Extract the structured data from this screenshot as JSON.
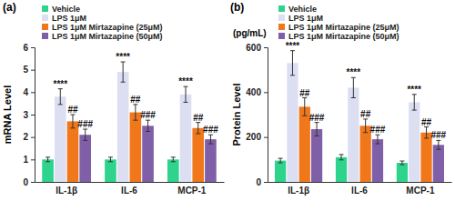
{
  "chart_data": [
    {
      "type": "bar",
      "title": "(a)",
      "y_label": "mRNA Level",
      "categories": [
        "IL-1β",
        "IL-6",
        "MCP-1"
      ],
      "ylim": [
        0,
        6
      ],
      "yticks": [
        0,
        1,
        2,
        3,
        4,
        5,
        6
      ],
      "legend": "top-left",
      "series": [
        {
          "name": "Vehicle",
          "color": "#2ed38c",
          "values": [
            1.0,
            1.0,
            1.0
          ],
          "errors": [
            0.1,
            0.1,
            0.1
          ]
        },
        {
          "name": "LPS 1μM",
          "color": "#dcdff2",
          "values": [
            3.8,
            4.9,
            3.9
          ],
          "errors": [
            0.35,
            0.45,
            0.35
          ],
          "annotations": [
            "****",
            "****",
            "****"
          ]
        },
        {
          "name": "LPS 1μM Mirtazapine (25μM)",
          "color": "#f0771a",
          "values": [
            2.7,
            3.1,
            2.4
          ],
          "errors": [
            0.3,
            0.35,
            0.25
          ],
          "annotations": [
            "##",
            "##",
            "##"
          ]
        },
        {
          "name": "LPS 1μM Mirtazapine (50μM)",
          "color": "#7f5fa8",
          "values": [
            2.1,
            2.5,
            1.9
          ],
          "errors": [
            0.25,
            0.25,
            0.2
          ],
          "annotations": [
            "###",
            "###",
            "###"
          ]
        }
      ]
    },
    {
      "type": "bar",
      "title": "(b)",
      "subtitle": "(pg/mL)",
      "y_label": "Protein Level",
      "categories": [
        "IL-1β",
        "IL-6",
        "MCP-1"
      ],
      "ylim": [
        0,
        600
      ],
      "yticks": [
        0,
        200,
        400,
        600
      ],
      "legend": "top-left",
      "series": [
        {
          "name": "Vehicle",
          "color": "#2ed38c",
          "values": [
            95,
            110,
            85
          ],
          "errors": [
            10,
            12,
            8
          ]
        },
        {
          "name": "LPS 1μM",
          "color": "#dcdff2",
          "values": [
            530,
            420,
            355
          ],
          "errors": [
            55,
            45,
            35
          ],
          "annotations": [
            "****",
            "****",
            "****"
          ]
        },
        {
          "name": "LPS 1μM Mirtazapine (25μM)",
          "color": "#f0771a",
          "values": [
            335,
            250,
            220
          ],
          "errors": [
            40,
            30,
            25
          ],
          "annotations": [
            "##",
            "##",
            "##"
          ]
        },
        {
          "name": "LPS 1μM Mirtazapine (50μM)",
          "color": "#7f5fa8",
          "values": [
            235,
            190,
            165
          ],
          "errors": [
            30,
            20,
            20
          ],
          "annotations": [
            "###",
            "###",
            "###"
          ]
        }
      ]
    }
  ]
}
